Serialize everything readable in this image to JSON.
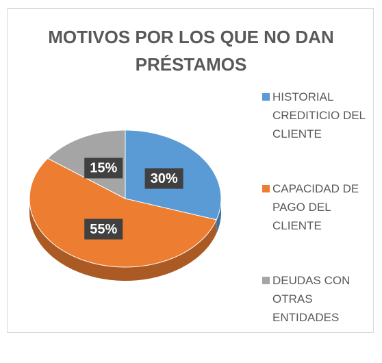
{
  "chart_data": {
    "type": "pie",
    "title": "MOTIVOS POR LOS QUE NO DAN PRÉSTAMOS",
    "categories": [
      "HISTORIAL CREDITICIO DEL CLIENTE",
      "CAPACIDAD DE PAGO DEL CLIENTE",
      "DEUDAS CON OTRAS ENTIDADES"
    ],
    "values": [
      30,
      55,
      15
    ],
    "value_labels": [
      "30%",
      "55%",
      "15%"
    ],
    "colors": [
      "#5b9bd5",
      "#ed7d31",
      "#a5a5a5"
    ],
    "legend": "right"
  }
}
